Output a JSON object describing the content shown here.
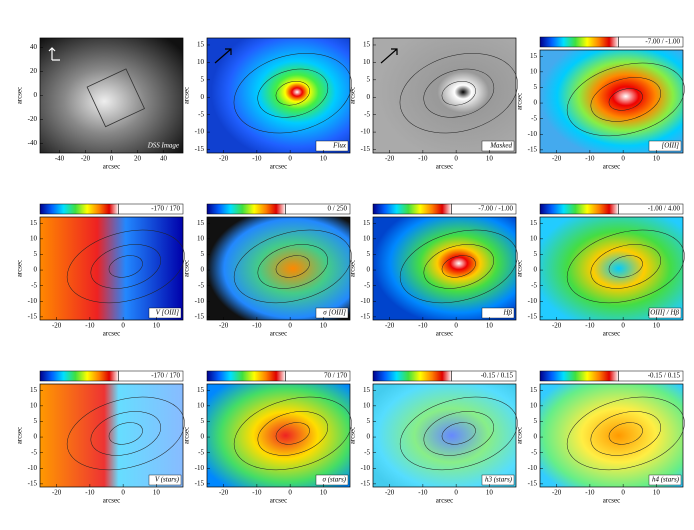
{
  "panels": [
    {
      "label": "DSS Image",
      "xlabel": "arcsec",
      "ylabel": "arcsec",
      "xlim": [
        -55,
        55
      ],
      "ylim": [
        -48,
        48
      ],
      "xticks": [
        -40,
        -20,
        0,
        20,
        40
      ],
      "yticks": [
        -40,
        -20,
        0,
        20,
        40
      ]
    },
    {
      "label": "Flux",
      "xlabel": "arcsec",
      "ylabel": "arcsec",
      "xlim": [
        -25,
        18
      ],
      "ylim": [
        -16,
        17
      ],
      "xticks": [
        -20,
        -10,
        0,
        10
      ],
      "yticks": [
        -15,
        -10,
        -5,
        0,
        5,
        10,
        15
      ]
    },
    {
      "label": "Masked",
      "xlabel": "arcsec",
      "ylabel": "arcsec",
      "xlim": [
        -25,
        18
      ],
      "ylim": [
        -16,
        17
      ],
      "xticks": [
        -20,
        -10,
        0,
        10
      ],
      "yticks": [
        -15,
        -10,
        -5,
        0,
        5,
        10,
        15
      ]
    },
    {
      "label": "[OIII]",
      "range": "-7.00 / -1.00",
      "xlabel": "arcsec",
      "ylabel": "arcsec",
      "xlim": [
        -25,
        18
      ],
      "ylim": [
        -16,
        17
      ],
      "xticks": [
        -20,
        -10,
        0,
        10
      ],
      "yticks": [
        -15,
        -10,
        -5,
        0,
        5,
        10,
        15
      ]
    },
    {
      "label": "V [OIII]",
      "range": "-170 / 170",
      "xlabel": "arcsec",
      "ylabel": "arcsec",
      "xlim": [
        -25,
        18
      ],
      "ylim": [
        -16,
        17
      ],
      "xticks": [
        -20,
        -10,
        0,
        10
      ],
      "yticks": [
        -15,
        -10,
        -5,
        0,
        5,
        10,
        15
      ]
    },
    {
      "label": "σ [OIII]",
      "range": "0 / 250",
      "xlabel": "arcsec",
      "ylabel": "arcsec",
      "xlim": [
        -25,
        18
      ],
      "ylim": [
        -16,
        17
      ],
      "xticks": [
        -20,
        -10,
        0,
        10
      ],
      "yticks": [
        -15,
        -10,
        -5,
        0,
        5,
        10,
        15
      ]
    },
    {
      "label": "Hβ",
      "range": "-7.00 / -1.00",
      "xlabel": "arcsec",
      "ylabel": "arcsec",
      "xlim": [
        -25,
        18
      ],
      "ylim": [
        -16,
        17
      ],
      "xticks": [
        -20,
        -10,
        0,
        10
      ],
      "yticks": [
        -15,
        -10,
        -5,
        0,
        5,
        10,
        15
      ]
    },
    {
      "label": "[OIII] / Hβ",
      "range": "-1.00 / 4.00",
      "xlabel": "arcsec",
      "ylabel": "arcsec",
      "xlim": [
        -25,
        18
      ],
      "ylim": [
        -16,
        17
      ],
      "xticks": [
        -20,
        -10,
        0,
        10
      ],
      "yticks": [
        -15,
        -10,
        -5,
        0,
        5,
        10,
        15
      ]
    },
    {
      "label": "V (stars)",
      "range": "-170 / 170",
      "xlabel": "arcsec",
      "ylabel": "arcsec",
      "xlim": [
        -25,
        18
      ],
      "ylim": [
        -16,
        17
      ],
      "xticks": [
        -20,
        -10,
        0,
        10
      ],
      "yticks": [
        -15,
        -10,
        -5,
        0,
        5,
        10,
        15
      ]
    },
    {
      "label": "σ (stars)",
      "range": "70 / 170",
      "xlabel": "arcsec",
      "ylabel": "arcsec",
      "xlim": [
        -25,
        18
      ],
      "ylim": [
        -16,
        17
      ],
      "xticks": [
        -20,
        -10,
        0,
        10
      ],
      "yticks": [
        -15,
        -10,
        -5,
        0,
        5,
        10,
        15
      ]
    },
    {
      "label": "h3 (stars)",
      "range": "-0.15 / 0.15",
      "xlabel": "arcsec",
      "ylabel": "arcsec",
      "xlim": [
        -25,
        18
      ],
      "ylim": [
        -16,
        17
      ],
      "xticks": [
        -20,
        -10,
        0,
        10
      ],
      "yticks": [
        -15,
        -10,
        -5,
        0,
        5,
        10,
        15
      ]
    },
    {
      "label": "h4 (stars)",
      "range": "-0.15 / 0.15",
      "xlabel": "arcsec",
      "ylabel": "arcsec",
      "xlim": [
        -25,
        18
      ],
      "ylim": [
        -16,
        17
      ],
      "xticks": [
        -20,
        -10,
        0,
        10
      ],
      "yticks": [
        -15,
        -10,
        -5,
        0,
        5,
        10,
        15
      ]
    }
  ]
}
